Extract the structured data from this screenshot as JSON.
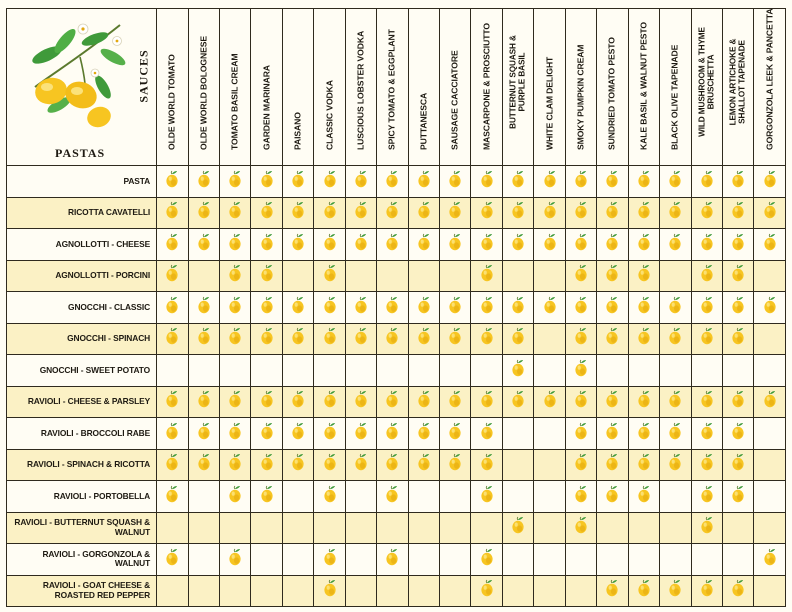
{
  "corner": {
    "sauces_label": "SAUCES",
    "pastas_label": "PASTAS",
    "illustration": "lemon-branch-illustration"
  },
  "sauces": [
    "OLDE WORLD TOMATO",
    "OLDE WORLD BOLOGNESE",
    "TOMATO BASIL CREAM",
    "GARDEN MARINARA",
    "PAISANO",
    "CLASSIC VODKA",
    "LUSCIOUS LOBSTER VODKA",
    "SPICY TOMATO & EGGPLANT",
    "PUTTANESCA",
    "SAUSAGE CACCIATORE",
    "MASCARPONE & PROSCIUTTO",
    "BUTTERNUT SQUASH & PURPLE BASIL",
    "WHITE CLAM DELIGHT",
    "SMOKY PUMPKIN CREAM",
    "SUNDRIED TOMATO PESTO",
    "KALE BASIL & WALNUT PESTO",
    "BLACK OLIVE TAPENADE",
    "WILD MUSHROOM & THYME BRUSCHETTA",
    "LEMON ARTICHOKE & SHALLOT TAPENADE",
    "GORGONZOLA LEEK & PANCETTA"
  ],
  "pairing_icon": "lemon-icon",
  "rows": [
    {
      "pasta": "PASTA",
      "pairs": [
        1,
        1,
        1,
        1,
        1,
        1,
        1,
        1,
        1,
        1,
        1,
        1,
        1,
        1,
        1,
        1,
        1,
        1,
        1,
        1
      ]
    },
    {
      "pasta": "RICOTTA CAVATELLI",
      "pairs": [
        1,
        1,
        1,
        1,
        1,
        1,
        1,
        1,
        1,
        1,
        1,
        1,
        1,
        1,
        1,
        1,
        1,
        1,
        1,
        1
      ]
    },
    {
      "pasta": "AGNOLLOTTI - CHEESE",
      "pairs": [
        1,
        1,
        1,
        1,
        1,
        1,
        1,
        1,
        1,
        1,
        1,
        1,
        1,
        1,
        1,
        1,
        1,
        1,
        1,
        1
      ]
    },
    {
      "pasta": "AGNOLLOTTI - PORCINI",
      "pairs": [
        1,
        0,
        1,
        1,
        0,
        1,
        0,
        0,
        0,
        0,
        1,
        0,
        0,
        1,
        1,
        1,
        0,
        1,
        1,
        0
      ]
    },
    {
      "pasta": "GNOCCHI - CLASSIC",
      "pairs": [
        1,
        1,
        1,
        1,
        1,
        1,
        1,
        1,
        1,
        1,
        1,
        1,
        1,
        1,
        1,
        1,
        1,
        1,
        1,
        1
      ]
    },
    {
      "pasta": "GNOCCHI - SPINACH",
      "pairs": [
        1,
        1,
        1,
        1,
        1,
        1,
        1,
        1,
        1,
        1,
        1,
        1,
        0,
        1,
        1,
        1,
        1,
        1,
        1,
        0
      ]
    },
    {
      "pasta": "GNOCCHI - SWEET POTATO",
      "pairs": [
        0,
        0,
        0,
        0,
        0,
        0,
        0,
        0,
        0,
        0,
        0,
        1,
        0,
        1,
        0,
        0,
        0,
        0,
        0,
        0
      ]
    },
    {
      "pasta": "RAVIOLI - CHEESE & PARSLEY",
      "pairs": [
        1,
        1,
        1,
        1,
        1,
        1,
        1,
        1,
        1,
        1,
        1,
        1,
        1,
        1,
        1,
        1,
        1,
        1,
        1,
        1
      ]
    },
    {
      "pasta": "RAVIOLI - BROCCOLI RABE",
      "pairs": [
        1,
        1,
        1,
        1,
        1,
        1,
        1,
        1,
        1,
        1,
        1,
        0,
        0,
        1,
        1,
        1,
        1,
        1,
        1,
        0
      ]
    },
    {
      "pasta": "RAVIOLI - SPINACH & RICOTTA",
      "pairs": [
        1,
        1,
        1,
        1,
        1,
        1,
        1,
        1,
        1,
        1,
        1,
        0,
        0,
        1,
        1,
        1,
        1,
        1,
        1,
        0
      ]
    },
    {
      "pasta": "RAVIOLI - PORTOBELLA",
      "pairs": [
        1,
        0,
        1,
        1,
        0,
        1,
        0,
        1,
        0,
        0,
        1,
        0,
        0,
        1,
        1,
        1,
        0,
        1,
        1,
        0
      ]
    },
    {
      "pasta": "RAVIOLI - BUTTERNUT SQUASH & WALNUT",
      "pairs": [
        0,
        0,
        0,
        0,
        0,
        0,
        0,
        0,
        0,
        0,
        0,
        1,
        0,
        1,
        0,
        0,
        0,
        1,
        0,
        0
      ]
    },
    {
      "pasta": "RAVIOLI - GORGONZOLA & WALNUT",
      "pairs": [
        1,
        0,
        1,
        0,
        0,
        1,
        0,
        1,
        0,
        0,
        1,
        0,
        0,
        0,
        0,
        0,
        0,
        0,
        0,
        1
      ]
    },
    {
      "pasta": "RAVIOLI - GOAT CHEESE & ROASTED RED PEPPER",
      "pairs": [
        0,
        0,
        0,
        0,
        0,
        1,
        0,
        0,
        0,
        0,
        1,
        0,
        0,
        0,
        1,
        1,
        1,
        1,
        1,
        0
      ]
    }
  ],
  "colors": {
    "lemon": "#f7c521",
    "lemon_shade": "#e3a80f",
    "leaf": "#3f9a3a",
    "band": "#fbf1c5",
    "paper": "#fffdf4",
    "rule": "#2f2a1e"
  }
}
